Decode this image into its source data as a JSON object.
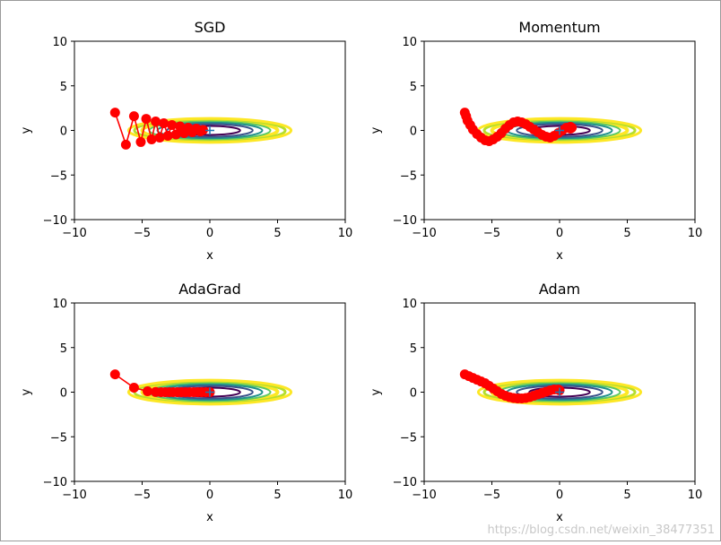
{
  "colors": {
    "trajectory": "#ff0000",
    "minimum_marker": "#1f77b4",
    "contours": [
      "#440154",
      "#3b528b",
      "#21918c",
      "#5ec962",
      "#fde725"
    ]
  },
  "watermark": "https://blog.csdn.net/weixin_38477351",
  "chart_data": [
    {
      "type": "line",
      "title": "SGD",
      "xlabel": "x",
      "ylabel": "y",
      "xlim": [
        -10,
        10
      ],
      "ylim": [
        -10,
        10
      ],
      "xticks": [
        -10,
        -5,
        0,
        5,
        10
      ],
      "yticks": [
        -10,
        -5,
        0,
        5,
        10
      ],
      "tick_labels_x": [
        "−10",
        "−5",
        "0",
        "5",
        "10"
      ],
      "tick_labels_y": [
        "10",
        "5",
        "0",
        "−5",
        "−10"
      ],
      "contour_levels": [
        0.25,
        0.5,
        0.75,
        1.0,
        1.25
      ],
      "minimum": [
        0,
        0
      ],
      "x": [
        -7.0,
        -6.2,
        -5.6,
        -5.1,
        -4.7,
        -4.3,
        -4.0,
        -3.7,
        -3.4,
        -3.1,
        -2.8,
        -2.5,
        -2.2,
        -1.9,
        -1.6,
        -1.3,
        -1.0,
        -0.7,
        -0.5
      ],
      "y": [
        2.0,
        -1.6,
        1.6,
        -1.3,
        1.3,
        -1.0,
        1.0,
        -0.8,
        0.8,
        -0.6,
        0.6,
        -0.45,
        0.45,
        -0.3,
        0.3,
        -0.2,
        0.2,
        -0.1,
        0.05
      ]
    },
    {
      "type": "line",
      "title": "Momentum",
      "xlabel": "x",
      "ylabel": "y",
      "xlim": [
        -10,
        10
      ],
      "ylim": [
        -10,
        10
      ],
      "xticks": [
        -10,
        -5,
        0,
        5,
        10
      ],
      "yticks": [
        -10,
        -5,
        0,
        5,
        10
      ],
      "tick_labels_x": [
        "−10",
        "−5",
        "0",
        "5",
        "10"
      ],
      "tick_labels_y": [
        "10",
        "5",
        "0",
        "−5",
        "−10"
      ],
      "contour_levels": [
        0.25,
        0.5,
        0.75,
        1.0,
        1.25
      ],
      "minimum": [
        0,
        0
      ],
      "x": [
        -7.0,
        -6.9,
        -6.8,
        -6.6,
        -6.4,
        -6.1,
        -5.8,
        -5.5,
        -5.2,
        -4.9,
        -4.6,
        -4.3,
        -4.0,
        -3.7,
        -3.4,
        -3.1,
        -2.8,
        -2.5,
        -2.2,
        -1.9,
        -1.6,
        -1.3,
        -1.0,
        -0.7,
        -0.4,
        -0.1,
        0.2,
        0.5,
        0.8,
        0.9,
        0.8
      ],
      "y": [
        2.0,
        1.6,
        1.1,
        0.6,
        0.1,
        -0.4,
        -0.8,
        -1.1,
        -1.2,
        -1.0,
        -0.7,
        -0.3,
        0.2,
        0.6,
        0.9,
        1.0,
        0.9,
        0.7,
        0.4,
        0.1,
        -0.2,
        -0.5,
        -0.7,
        -0.8,
        -0.6,
        -0.3,
        0.0,
        0.3,
        0.4,
        0.3,
        0.2
      ]
    },
    {
      "type": "line",
      "title": "AdaGrad",
      "xlabel": "x",
      "ylabel": "y",
      "xlim": [
        -10,
        10
      ],
      "ylim": [
        -10,
        10
      ],
      "xticks": [
        -10,
        -5,
        0,
        5,
        10
      ],
      "yticks": [
        -10,
        -5,
        0,
        5,
        10
      ],
      "tick_labels_x": [
        "−10",
        "−5",
        "0",
        "5",
        "10"
      ],
      "tick_labels_y": [
        "10",
        "5",
        "0",
        "−5",
        "−10"
      ],
      "contour_levels": [
        0.25,
        0.5,
        0.75,
        1.0,
        1.25
      ],
      "minimum": [
        0,
        0
      ],
      "x": [
        -7.0,
        -5.6,
        -4.6,
        -4.0,
        -3.6,
        -3.3,
        -3.0,
        -2.7,
        -2.4,
        -2.1,
        -1.8,
        -1.5,
        -1.2,
        -0.9,
        -0.6,
        -0.3,
        0.0
      ],
      "y": [
        2.0,
        0.5,
        0.1,
        0.02,
        0.0,
        0.0,
        0.0,
        0.0,
        0.0,
        0.0,
        0.0,
        0.0,
        0.0,
        0.0,
        0.0,
        0.0,
        0.0
      ]
    },
    {
      "type": "line",
      "title": "Adam",
      "xlabel": "x",
      "ylabel": "y",
      "xlim": [
        -10,
        10
      ],
      "ylim": [
        -10,
        10
      ],
      "xticks": [
        -10,
        -5,
        0,
        5,
        10
      ],
      "yticks": [
        -10,
        -5,
        0,
        5,
        10
      ],
      "tick_labels_x": [
        "−10",
        "−5",
        "0",
        "5",
        "10"
      ],
      "tick_labels_y": [
        "10",
        "5",
        "0",
        "−5",
        "−10"
      ],
      "contour_levels": [
        0.25,
        0.5,
        0.75,
        1.0,
        1.25
      ],
      "minimum": [
        0,
        0
      ],
      "x": [
        -7.0,
        -6.7,
        -6.4,
        -6.1,
        -5.8,
        -5.5,
        -5.2,
        -4.9,
        -4.6,
        -4.3,
        -4.0,
        -3.7,
        -3.4,
        -3.1,
        -2.8,
        -2.5,
        -2.2,
        -1.9,
        -1.6,
        -1.3,
        -1.0,
        -0.7,
        -0.4,
        -0.1,
        0.0
      ],
      "y": [
        2.0,
        1.8,
        1.6,
        1.4,
        1.2,
        1.0,
        0.7,
        0.4,
        0.1,
        -0.2,
        -0.4,
        -0.55,
        -0.65,
        -0.7,
        -0.7,
        -0.65,
        -0.55,
        -0.4,
        -0.25,
        -0.1,
        0.05,
        0.2,
        0.3,
        0.3,
        0.2
      ]
    }
  ]
}
